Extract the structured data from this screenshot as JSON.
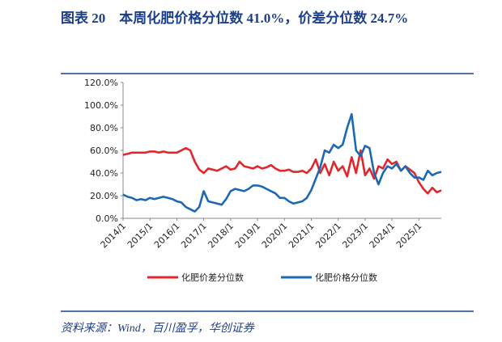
{
  "header": {
    "title": "图表 20　本周化肥价格分位数 41.0%，价差分位数 24.7%"
  },
  "chart_data": {
    "type": "line",
    "categories": [
      "2014/1",
      null,
      null,
      null,
      null,
      null,
      "2015/1",
      null,
      null,
      null,
      null,
      null,
      "2016/1",
      null,
      null,
      null,
      null,
      null,
      "2017/1",
      null,
      null,
      null,
      null,
      null,
      "2018/1",
      null,
      null,
      null,
      null,
      null,
      "2019/1",
      null,
      null,
      null,
      null,
      null,
      "2020/1",
      null,
      null,
      null,
      null,
      null,
      "2021/1",
      null,
      null,
      null,
      null,
      null,
      "2022/1",
      null,
      null,
      null,
      null,
      null,
      "2023/1",
      null,
      null,
      null,
      null,
      null,
      "2024/1",
      null,
      null,
      null,
      null,
      null,
      "2025/1",
      null,
      null,
      null,
      null,
      null
    ],
    "series": [
      {
        "name": "化肥价差分位数",
        "color": "#e3262b",
        "values": [
          56,
          57,
          58,
          58,
          58,
          58,
          59,
          59,
          58,
          59,
          58,
          58,
          58,
          60,
          62,
          60,
          50,
          43,
          40,
          44,
          43,
          42,
          44,
          46,
          43,
          44,
          50,
          46,
          45,
          44,
          46,
          44,
          45,
          47,
          44,
          42,
          42,
          43,
          41,
          41,
          42,
          40,
          44,
          52,
          40,
          48,
          38,
          50,
          42,
          46,
          37,
          54,
          40,
          60,
          38,
          44,
          35,
          46,
          44,
          52,
          48,
          50,
          42,
          46,
          43,
          40,
          32,
          26,
          22,
          27,
          23,
          24.7
        ]
      },
      {
        "name": "化肥价格分位数",
        "color": "#1d68b3",
        "values": [
          21,
          19,
          18,
          16,
          17,
          16,
          18,
          17,
          18,
          19,
          18,
          17,
          15,
          14,
          10,
          8,
          6,
          10,
          24,
          15,
          14,
          13,
          12,
          17,
          24,
          26,
          25,
          24,
          26,
          29,
          29,
          28,
          26,
          24,
          22,
          18,
          18,
          15,
          13,
          14,
          15,
          18,
          25,
          35,
          45,
          60,
          58,
          65,
          62,
          65,
          80,
          92,
          60,
          55,
          64,
          62,
          40,
          30,
          40,
          46,
          44,
          48,
          42,
          46,
          40,
          36,
          36,
          34,
          42,
          38,
          40,
          41
        ]
      }
    ],
    "ylim": [
      0,
      120
    ],
    "yticks": [
      {
        "value": 0,
        "label": "0.0%"
      },
      {
        "value": 20,
        "label": "20.0%"
      },
      {
        "value": 40,
        "label": "40.0%"
      },
      {
        "value": 60,
        "label": "60.0%"
      },
      {
        "value": 80,
        "label": "80.0%"
      },
      {
        "value": 100,
        "label": "100.0%"
      },
      {
        "value": 120,
        "label": "120.0%"
      }
    ],
    "source": "资料来源：Wind，百川盈孚，华创证券"
  }
}
